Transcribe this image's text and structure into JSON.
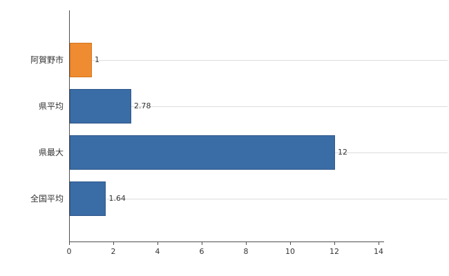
{
  "chart_data": {
    "type": "bar",
    "orientation": "horizontal",
    "title": "",
    "categories": [
      "阿賀野市",
      "県平均",
      "県最大",
      "全国平均"
    ],
    "values": [
      1,
      2.78,
      12,
      1.64
    ],
    "value_labels": [
      "1",
      "2.78",
      "12",
      "1.64"
    ],
    "bar_colors": [
      "#ef8c31",
      "#3a6ca6",
      "#3a6ca6",
      "#3a6ca6"
    ],
    "bar_border_colors": [
      "#d2731c",
      "#2f588a",
      "#2f588a",
      "#2f588a"
    ],
    "xlim": [
      0,
      14
    ],
    "xticks": [
      "0",
      "2",
      "4",
      "6",
      "8",
      "10",
      "12",
      "14"
    ],
    "xlabel": "",
    "ylabel": "",
    "grid": "row-center-lines",
    "legend": "none",
    "colors": {
      "axis": "#4d4d4d",
      "gridline": "#dcdcdc",
      "text": "#333333",
      "background": "#ffffff"
    }
  }
}
